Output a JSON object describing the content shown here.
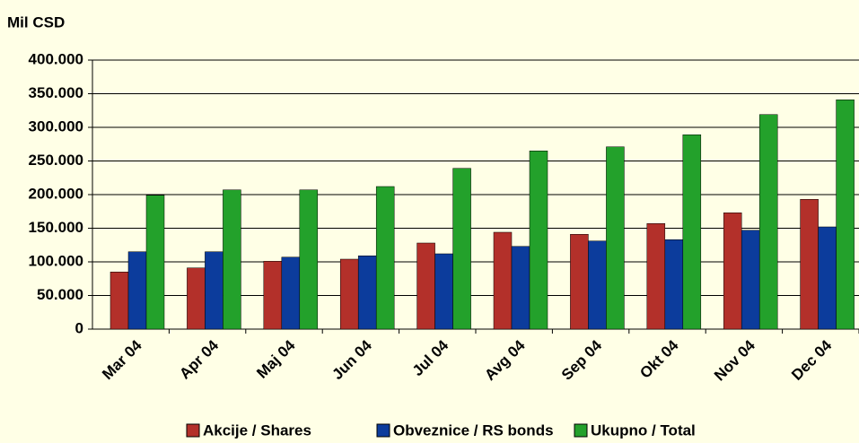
{
  "chart_data": {
    "type": "bar",
    "title": "Mil CSD",
    "categories": [
      "Mar 04",
      "Apr 04",
      "Maj 04",
      "Jun 04",
      "Jul 04",
      "Avg 04",
      "Sep 04",
      "Okt  04",
      "Nov 04",
      "Dec 04"
    ],
    "series": [
      {
        "name": "Akcije / Shares",
        "color": "#b3302a",
        "values": [
          85000,
          91000,
          101000,
          104000,
          128000,
          144000,
          141000,
          157000,
          173000,
          193000
        ]
      },
      {
        "name": "Obveznice / RS bonds",
        "color": "#0c3c9c",
        "values": [
          115000,
          115000,
          107000,
          109000,
          112000,
          123000,
          131000,
          133000,
          147000,
          152000
        ]
      },
      {
        "name": "Ukupno / Total",
        "color": "#23a12b",
        "values": [
          199000,
          207000,
          207000,
          212000,
          239000,
          265000,
          271000,
          289000,
          319000,
          341000
        ]
      }
    ],
    "ylim": [
      0,
      400000
    ],
    "yticks": [
      0,
      {
        "value": 50000,
        "label": "50.000"
      },
      {
        "value": 100000,
        "label": "100.000"
      },
      {
        "value": 150000,
        "label": "150.000"
      },
      {
        "value": 200000,
        "label": "200.000"
      },
      {
        "value": 250000,
        "label": "250.000"
      },
      {
        "value": 300000,
        "label": "300.000"
      },
      {
        "value": 350000,
        "label": "350.000"
      },
      {
        "value": 400000,
        "label": "400.000"
      }
    ],
    "grid": true,
    "legend": "bottom"
  }
}
